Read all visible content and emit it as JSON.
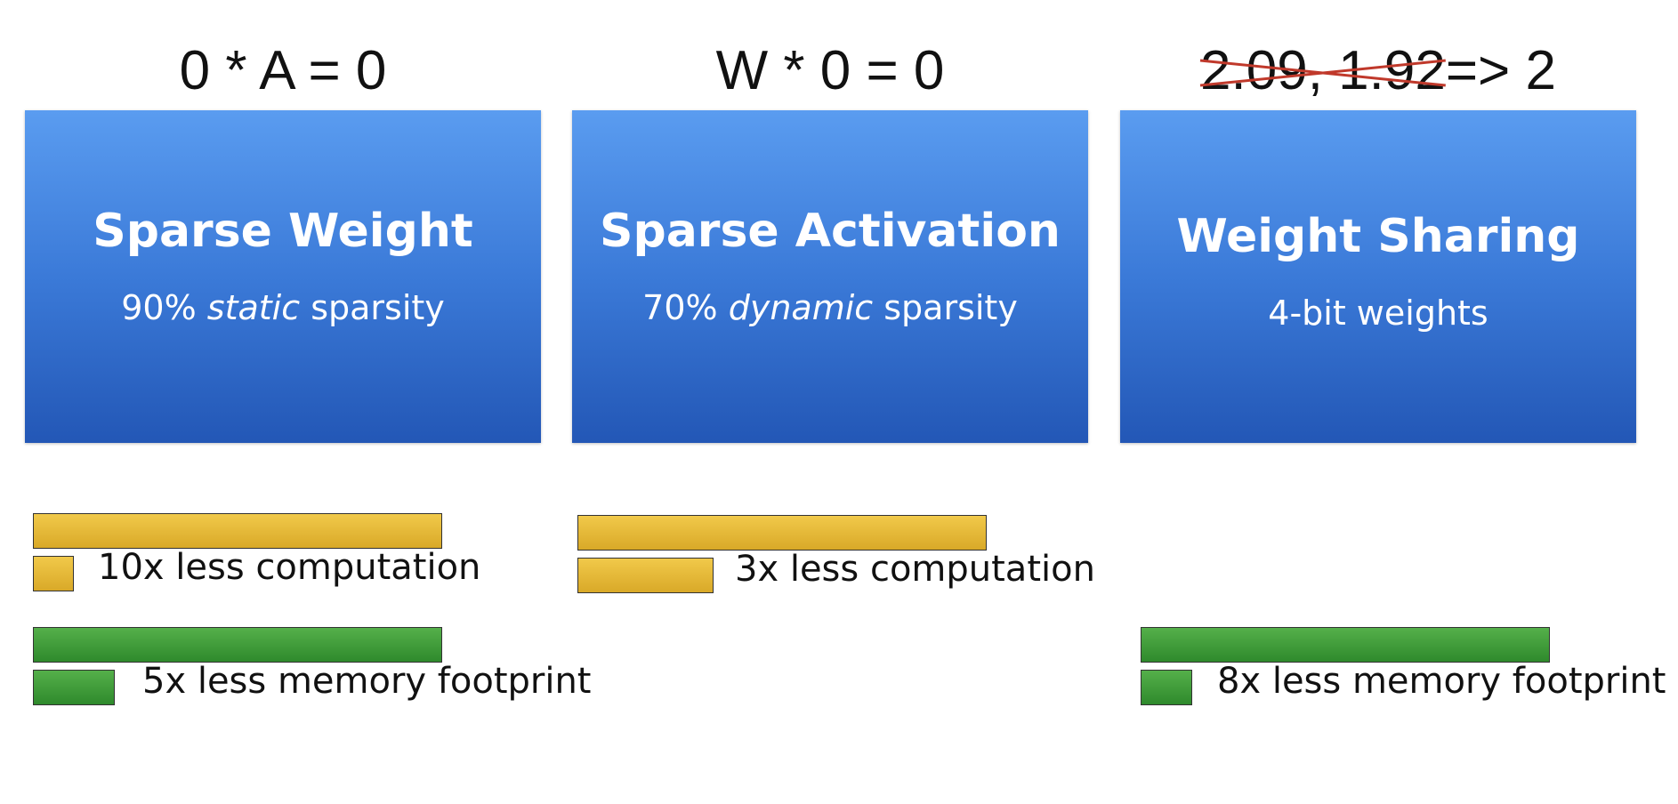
{
  "equations": {
    "eq1": "0 * A = 0",
    "eq2": "W * 0 = 0",
    "eq3_struck": "2.09, 1.92",
    "eq3_result": "=> 2"
  },
  "panels": [
    {
      "title": "Sparse Weight",
      "sub_pre": "90% ",
      "sub_em": "static",
      "sub_post": " sparsity"
    },
    {
      "title": "Sparse Activation",
      "sub_pre": "70% ",
      "sub_em": "dynamic",
      "sub_post": " sparsity"
    },
    {
      "title": "Weight Sharing",
      "sub": "4-bit weights"
    }
  ],
  "comparisons": [
    {
      "label": "10x less computation",
      "baseline": 1,
      "reduced": 0.1
    },
    {
      "label": "5x less memory footprint",
      "baseline": 1,
      "reduced": 0.2
    },
    {
      "label": "3x less computation",
      "baseline": 1,
      "reduced": 0.333
    },
    {
      "label": "8x less memory footprint",
      "baseline": 1,
      "reduced": 0.125
    }
  ],
  "colors": {
    "panel_top": "#5a9cf0",
    "panel_bottom": "#2357b6",
    "computation": "#e4b634",
    "memory": "#3f9a3a",
    "strike": "#c0392b"
  }
}
